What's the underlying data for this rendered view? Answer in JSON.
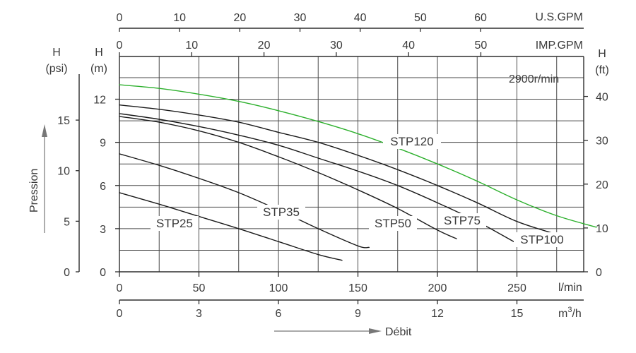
{
  "chart_data": {
    "type": "line",
    "title": "",
    "speed_label": "2900r/min",
    "x_axes": {
      "lpm": {
        "label": "l/min",
        "ticks": [
          0,
          50,
          100,
          150,
          200,
          250
        ],
        "range": [
          0,
          300
        ]
      },
      "m3h": {
        "label": "m3/h",
        "ticks": [
          0,
          3,
          6,
          9,
          12,
          15
        ],
        "range": [
          0,
          18
        ]
      },
      "usgpm": {
        "label": "U.S.GPM",
        "ticks": [
          0,
          10,
          20,
          30,
          40,
          50,
          60
        ]
      },
      "impgpm": {
        "label": "IMP.GPM",
        "ticks": [
          0,
          10,
          20,
          30,
          40,
          50
        ]
      },
      "debit_label": "Débit"
    },
    "y_axes": {
      "m": {
        "label_top": "H",
        "label_unit": "(m)",
        "ticks": [
          0,
          3,
          6,
          9,
          12
        ],
        "range": [
          0,
          15
        ]
      },
      "psi": {
        "label_top": "H",
        "label_unit": "(psi)",
        "ticks": [
          0,
          5,
          10,
          15
        ]
      },
      "ft": {
        "label_top": "H",
        "label_unit": "(ft)",
        "ticks": [
          0,
          10,
          20,
          30,
          40
        ]
      },
      "pression_label": "Pression"
    },
    "series": [
      {
        "name": "STP25",
        "color": "#1a1a1a",
        "x": [
          0,
          25,
          50,
          75,
          100,
          125,
          140
        ],
        "y": [
          5.5,
          4.7,
          3.85,
          3.0,
          2.1,
          1.2,
          0.8
        ]
      },
      {
        "name": "STP35",
        "color": "#1a1a1a",
        "x": [
          0,
          25,
          50,
          75,
          100,
          125,
          150,
          157
        ],
        "y": [
          8.2,
          7.4,
          6.5,
          5.5,
          4.3,
          3.0,
          1.8,
          1.7
        ]
      },
      {
        "name": "STP50",
        "color": "#1a1a1a",
        "x": [
          0,
          25,
          50,
          75,
          100,
          125,
          150,
          175,
          200,
          212
        ],
        "y": [
          10.8,
          10.4,
          9.8,
          9.0,
          8.0,
          6.9,
          5.7,
          4.4,
          2.9,
          2.3
        ]
      },
      {
        "name": "STP75",
        "color": "#1a1a1a",
        "x": [
          0,
          25,
          50,
          75,
          100,
          125,
          150,
          175,
          200,
          225,
          248
        ],
        "y": [
          11.0,
          10.6,
          10.1,
          9.5,
          8.8,
          7.9,
          7.0,
          6.0,
          4.8,
          3.5,
          2.1
        ]
      },
      {
        "name": "STP100",
        "color": "#1a1a1a",
        "x": [
          0,
          25,
          50,
          75,
          100,
          125,
          150,
          175,
          200,
          225,
          250,
          275
        ],
        "y": [
          11.6,
          11.3,
          10.9,
          10.4,
          9.7,
          9.0,
          8.1,
          7.1,
          6.0,
          4.8,
          3.5,
          2.6
        ]
      },
      {
        "name": "STP120",
        "color": "#2db02d",
        "x": [
          0,
          25,
          50,
          75,
          100,
          125,
          150,
          175,
          200,
          225,
          250,
          275,
          300
        ],
        "y": [
          13.0,
          12.75,
          12.35,
          11.85,
          11.2,
          10.45,
          9.6,
          8.6,
          7.5,
          6.3,
          5.0,
          3.9,
          3.1
        ]
      }
    ]
  }
}
